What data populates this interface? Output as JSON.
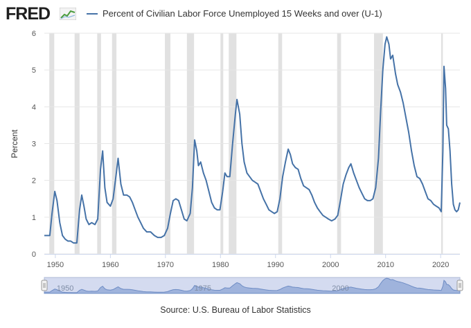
{
  "header": {
    "logo_text": "FRED",
    "logo_graph_icon": "line-chart-icon",
    "series_title": "Percent of Civilian Labor Force Unemployed 15 Weeks and over (U-1)"
  },
  "source": "Source: U.S. Bureau of Labor Statistics",
  "chart_data": {
    "type": "line",
    "title": "Percent of Civilian Labor Force Unemployed 15 Weeks and over (U-1)",
    "xlabel": "",
    "ylabel": "Percent",
    "xlim": [
      1948,
      2023.5
    ],
    "ylim": [
      0,
      6
    ],
    "x_ticks": [
      1950,
      1960,
      1970,
      1980,
      1990,
      2000,
      2010,
      2020
    ],
    "y_ticks": [
      0,
      1,
      2,
      3,
      4,
      5,
      6
    ],
    "grid": "horizontal",
    "line_color": "#4572a7",
    "recession_color": "#e1e1e1",
    "recessions": [
      [
        1948.9,
        1949.8
      ],
      [
        1953.5,
        1954.4
      ],
      [
        1957.6,
        1958.3
      ],
      [
        1960.3,
        1961.1
      ],
      [
        1969.9,
        1970.9
      ],
      [
        1973.9,
        1975.2
      ],
      [
        1980.0,
        1980.5
      ],
      [
        1981.5,
        1982.9
      ],
      [
        1990.5,
        1991.2
      ],
      [
        2001.2,
        2001.9
      ],
      [
        2007.9,
        2009.5
      ],
      [
        2020.1,
        2020.4
      ]
    ],
    "series": [
      {
        "name": "Percent of Civilian Labor Force Unemployed 15 Weeks and over (U-1)",
        "points": [
          [
            1948.0,
            0.5
          ],
          [
            1949.0,
            0.5
          ],
          [
            1949.4,
            1.1
          ],
          [
            1949.9,
            1.7
          ],
          [
            1950.3,
            1.45
          ],
          [
            1950.8,
            0.85
          ],
          [
            1951.3,
            0.5
          ],
          [
            1951.8,
            0.4
          ],
          [
            1952.3,
            0.35
          ],
          [
            1952.8,
            0.35
          ],
          [
            1953.3,
            0.3
          ],
          [
            1953.9,
            0.3
          ],
          [
            1954.4,
            1.2
          ],
          [
            1954.8,
            1.6
          ],
          [
            1955.2,
            1.3
          ],
          [
            1955.6,
            0.95
          ],
          [
            1956.1,
            0.8
          ],
          [
            1956.6,
            0.85
          ],
          [
            1957.2,
            0.8
          ],
          [
            1957.7,
            0.95
          ],
          [
            1958.2,
            2.3
          ],
          [
            1958.6,
            2.8
          ],
          [
            1959.0,
            1.8
          ],
          [
            1959.4,
            1.4
          ],
          [
            1960.0,
            1.3
          ],
          [
            1960.5,
            1.5
          ],
          [
            1961.0,
            2.1
          ],
          [
            1961.4,
            2.6
          ],
          [
            1961.9,
            1.9
          ],
          [
            1962.4,
            1.6
          ],
          [
            1963.0,
            1.6
          ],
          [
            1963.5,
            1.55
          ],
          [
            1964.0,
            1.4
          ],
          [
            1964.5,
            1.2
          ],
          [
            1965.0,
            1.0
          ],
          [
            1965.5,
            0.85
          ],
          [
            1966.0,
            0.7
          ],
          [
            1966.6,
            0.6
          ],
          [
            1967.3,
            0.6
          ],
          [
            1968.0,
            0.5
          ],
          [
            1968.6,
            0.45
          ],
          [
            1969.2,
            0.45
          ],
          [
            1969.8,
            0.5
          ],
          [
            1970.4,
            0.7
          ],
          [
            1970.9,
            1.1
          ],
          [
            1971.4,
            1.45
          ],
          [
            1971.9,
            1.5
          ],
          [
            1972.4,
            1.45
          ],
          [
            1972.9,
            1.2
          ],
          [
            1973.4,
            0.95
          ],
          [
            1973.9,
            0.9
          ],
          [
            1974.5,
            1.1
          ],
          [
            1974.9,
            1.8
          ],
          [
            1975.3,
            3.1
          ],
          [
            1975.7,
            2.8
          ],
          [
            1976.0,
            2.4
          ],
          [
            1976.4,
            2.5
          ],
          [
            1976.9,
            2.2
          ],
          [
            1977.4,
            2.0
          ],
          [
            1977.9,
            1.7
          ],
          [
            1978.4,
            1.4
          ],
          [
            1978.9,
            1.25
          ],
          [
            1979.4,
            1.2
          ],
          [
            1979.9,
            1.2
          ],
          [
            1980.4,
            1.7
          ],
          [
            1980.8,
            2.2
          ],
          [
            1981.2,
            2.1
          ],
          [
            1981.7,
            2.1
          ],
          [
            1982.2,
            3.0
          ],
          [
            1982.7,
            3.8
          ],
          [
            1983.0,
            4.2
          ],
          [
            1983.5,
            3.8
          ],
          [
            1983.9,
            3.0
          ],
          [
            1984.3,
            2.5
          ],
          [
            1984.8,
            2.2
          ],
          [
            1985.3,
            2.1
          ],
          [
            1985.8,
            2.0
          ],
          [
            1986.3,
            1.95
          ],
          [
            1986.8,
            1.9
          ],
          [
            1987.3,
            1.7
          ],
          [
            1987.8,
            1.5
          ],
          [
            1988.3,
            1.35
          ],
          [
            1988.8,
            1.2
          ],
          [
            1989.3,
            1.15
          ],
          [
            1989.8,
            1.1
          ],
          [
            1990.3,
            1.15
          ],
          [
            1990.8,
            1.5
          ],
          [
            1991.3,
            2.1
          ],
          [
            1991.8,
            2.5
          ],
          [
            1992.3,
            2.85
          ],
          [
            1992.7,
            2.7
          ],
          [
            1993.1,
            2.45
          ],
          [
            1993.6,
            2.35
          ],
          [
            1994.1,
            2.3
          ],
          [
            1994.6,
            2.05
          ],
          [
            1995.1,
            1.85
          ],
          [
            1995.6,
            1.8
          ],
          [
            1996.1,
            1.75
          ],
          [
            1996.6,
            1.6
          ],
          [
            1997.1,
            1.4
          ],
          [
            1997.6,
            1.25
          ],
          [
            1998.1,
            1.15
          ],
          [
            1998.6,
            1.05
          ],
          [
            1999.1,
            1.0
          ],
          [
            1999.6,
            0.95
          ],
          [
            2000.2,
            0.9
          ],
          [
            2000.8,
            0.95
          ],
          [
            2001.3,
            1.05
          ],
          [
            2001.8,
            1.45
          ],
          [
            2002.3,
            1.9
          ],
          [
            2002.8,
            2.15
          ],
          [
            2003.3,
            2.35
          ],
          [
            2003.7,
            2.45
          ],
          [
            2004.2,
            2.2
          ],
          [
            2004.7,
            2.0
          ],
          [
            2005.2,
            1.8
          ],
          [
            2005.7,
            1.65
          ],
          [
            2006.2,
            1.5
          ],
          [
            2006.7,
            1.45
          ],
          [
            2007.2,
            1.45
          ],
          [
            2007.7,
            1.5
          ],
          [
            2008.2,
            1.8
          ],
          [
            2008.7,
            2.6
          ],
          [
            2009.1,
            3.9
          ],
          [
            2009.5,
            5.0
          ],
          [
            2009.9,
            5.7
          ],
          [
            2010.2,
            5.9
          ],
          [
            2010.6,
            5.7
          ],
          [
            2010.9,
            5.3
          ],
          [
            2011.3,
            5.4
          ],
          [
            2011.8,
            4.9
          ],
          [
            2012.2,
            4.6
          ],
          [
            2012.7,
            4.4
          ],
          [
            2013.2,
            4.1
          ],
          [
            2013.7,
            3.7
          ],
          [
            2014.2,
            3.3
          ],
          [
            2014.7,
            2.8
          ],
          [
            2015.2,
            2.4
          ],
          [
            2015.7,
            2.1
          ],
          [
            2016.2,
            2.05
          ],
          [
            2016.7,
            1.9
          ],
          [
            2017.2,
            1.7
          ],
          [
            2017.7,
            1.5
          ],
          [
            2018.2,
            1.45
          ],
          [
            2018.7,
            1.35
          ],
          [
            2019.2,
            1.3
          ],
          [
            2019.7,
            1.25
          ],
          [
            2020.1,
            1.15
          ],
          [
            2020.4,
            2.8
          ],
          [
            2020.6,
            5.1
          ],
          [
            2020.9,
            4.5
          ],
          [
            2021.1,
            3.5
          ],
          [
            2021.4,
            3.4
          ],
          [
            2021.7,
            2.8
          ],
          [
            2022.0,
            1.9
          ],
          [
            2022.3,
            1.35
          ],
          [
            2022.6,
            1.2
          ],
          [
            2022.9,
            1.15
          ],
          [
            2023.2,
            1.2
          ],
          [
            2023.5,
            1.4
          ]
        ]
      }
    ]
  }
}
